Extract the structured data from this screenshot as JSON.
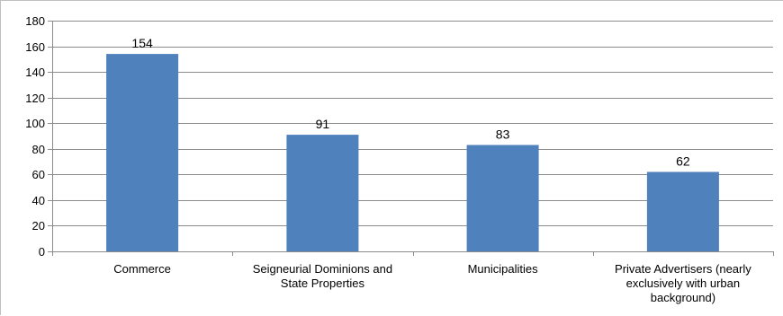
{
  "chart_data": {
    "type": "bar",
    "categories": [
      "Commerce",
      "Seigneurial Dominions and State Properties",
      "Municipalities",
      "Private Advertisers (nearly exclusively with urban background)"
    ],
    "category_label_lines": [
      [
        "Commerce"
      ],
      [
        "Seigneurial Dominions and",
        "State Properties"
      ],
      [
        "Municipalities"
      ],
      [
        "Private Advertisers (nearly",
        "exclusively with urban",
        "background)"
      ]
    ],
    "values": [
      154,
      91,
      83,
      62
    ],
    "data_labels": [
      "154",
      "91",
      "83",
      "62"
    ],
    "ylim": [
      0,
      180
    ],
    "yticks": [
      "0",
      "20",
      "40",
      "60",
      "80",
      "100",
      "120",
      "140",
      "160",
      "180"
    ],
    "title": "",
    "xlabel": "",
    "ylabel": "",
    "grid": true,
    "legend": "none",
    "colors": {
      "bar": "#4f81bd",
      "grid": "#8c8c8c",
      "axis": "#8c8c8c"
    }
  }
}
